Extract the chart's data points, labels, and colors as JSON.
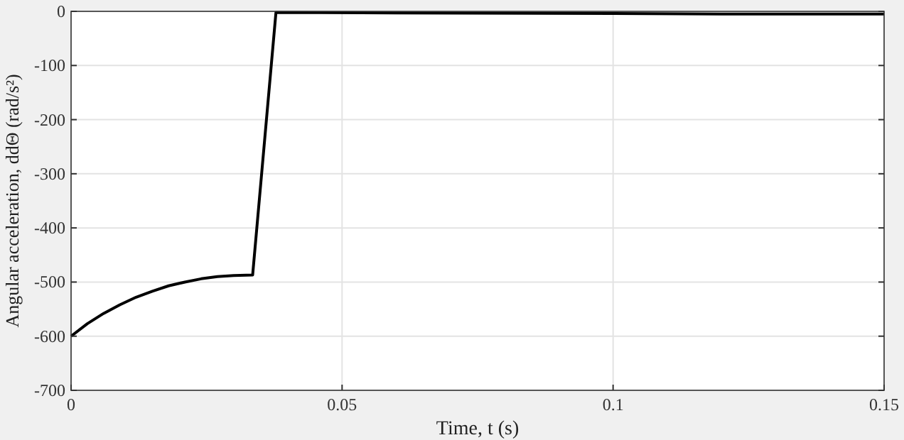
{
  "chart_data": {
    "type": "line",
    "xlabel": "Time, t (s)",
    "ylabel": "Angular acceleration, ddΘ (rad/s²)",
    "x": [
      0,
      0.003,
      0.006,
      0.009,
      0.012,
      0.015,
      0.018,
      0.021,
      0.024,
      0.027,
      0.03,
      0.0335,
      0.0378,
      0.06,
      0.1,
      0.12,
      0.15
    ],
    "series": [
      {
        "color": "#000000",
        "values": [
          -600,
          -577,
          -558,
          -542,
          -528,
          -517,
          -507,
          -500,
          -494,
          -490,
          -488,
          -487,
          -2,
          -3,
          -4,
          -5,
          -5
        ]
      }
    ],
    "xlim": [
      0,
      0.15
    ],
    "ylim": [
      -700,
      0
    ],
    "xticks": [
      0,
      0.05,
      0.1,
      0.15
    ],
    "yticks": [
      -700,
      -600,
      -500,
      -400,
      -300,
      -200,
      -100,
      0
    ],
    "grid": true,
    "marker": "none",
    "line_style": "solid"
  }
}
